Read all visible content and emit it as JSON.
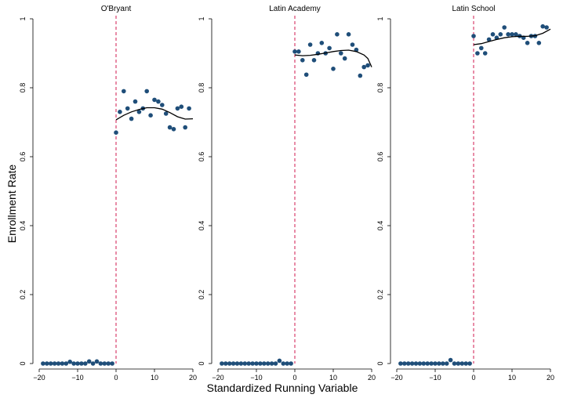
{
  "figure": {
    "ylabel": "Enrollment Rate",
    "xlabel": "Standardized Running Variable"
  },
  "colors": {
    "points": "#1f4e79",
    "cutoff": "#d11a4f",
    "fit": "#000000",
    "axis": "#000000"
  },
  "chart_data": [
    {
      "type": "scatter",
      "title": "O'Bryant",
      "xlim": [
        -20,
        20
      ],
      "ylim": [
        0,
        1
      ],
      "xticks": [
        -20,
        -10,
        0,
        10,
        20
      ],
      "xtick_labels": [
        "−20",
        "−10",
        "0",
        "10",
        "20"
      ],
      "yticks": [
        0,
        0.2,
        0.4,
        0.6,
        0.8,
        1
      ],
      "ytick_labels": [
        "0",
        "0.2",
        "0.4",
        "0.6",
        "0.8",
        "1"
      ],
      "cutoff": 0,
      "points": [
        [
          -19,
          0
        ],
        [
          -18,
          0
        ],
        [
          -17,
          0
        ],
        [
          -16,
          0
        ],
        [
          -15,
          0
        ],
        [
          -14,
          0
        ],
        [
          -13,
          0
        ],
        [
          -12,
          0.005
        ],
        [
          -11,
          0
        ],
        [
          -10,
          0
        ],
        [
          -9,
          0
        ],
        [
          -8,
          0
        ],
        [
          -7,
          0.006
        ],
        [
          -6,
          0
        ],
        [
          -5,
          0.006
        ],
        [
          -4,
          0
        ],
        [
          -3,
          0
        ],
        [
          -2,
          0
        ],
        [
          -1,
          0
        ],
        [
          0,
          0.67
        ],
        [
          1,
          0.73
        ],
        [
          2,
          0.79
        ],
        [
          3,
          0.74
        ],
        [
          4,
          0.71
        ],
        [
          5,
          0.76
        ],
        [
          6,
          0.73
        ],
        [
          7,
          0.74
        ],
        [
          8,
          0.79
        ],
        [
          9,
          0.72
        ],
        [
          10,
          0.765
        ],
        [
          11,
          0.76
        ],
        [
          12,
          0.75
        ],
        [
          13,
          0.725
        ],
        [
          14,
          0.685
        ],
        [
          15,
          0.68
        ],
        [
          16,
          0.74
        ],
        [
          17,
          0.745
        ],
        [
          18,
          0.685
        ],
        [
          19,
          0.74
        ]
      ],
      "fit": [
        [
          0,
          0.707
        ],
        [
          2,
          0.72
        ],
        [
          4,
          0.73
        ],
        [
          6,
          0.737
        ],
        [
          8,
          0.742
        ],
        [
          10,
          0.742
        ],
        [
          12,
          0.738
        ],
        [
          14,
          0.728
        ],
        [
          16,
          0.716
        ],
        [
          18,
          0.709
        ],
        [
          20,
          0.71
        ]
      ]
    },
    {
      "type": "scatter",
      "title": "Latin Academy",
      "xlim": [
        -20,
        20
      ],
      "ylim": [
        0,
        1
      ],
      "xticks": [
        -20,
        -10,
        0,
        10,
        20
      ],
      "xtick_labels": [
        "−20",
        "−10",
        "0",
        "10",
        "20"
      ],
      "yticks": [
        0,
        0.2,
        0.4,
        0.6,
        0.8,
        1
      ],
      "ytick_labels": [
        "0",
        "0.2",
        "0.4",
        "0.6",
        "0.8",
        "1"
      ],
      "cutoff": 0,
      "points": [
        [
          -19,
          0
        ],
        [
          -18,
          0
        ],
        [
          -17,
          0
        ],
        [
          -16,
          0
        ],
        [
          -15,
          0
        ],
        [
          -14,
          0
        ],
        [
          -13,
          0
        ],
        [
          -12,
          0
        ],
        [
          -11,
          0
        ],
        [
          -10,
          0
        ],
        [
          -9,
          0
        ],
        [
          -8,
          0
        ],
        [
          -7,
          0
        ],
        [
          -6,
          0
        ],
        [
          -5,
          0
        ],
        [
          -4,
          0.008
        ],
        [
          -3,
          0
        ],
        [
          -2,
          0
        ],
        [
          -1,
          0
        ],
        [
          0,
          0.905
        ],
        [
          1,
          0.905
        ],
        [
          2,
          0.88
        ],
        [
          3,
          0.838
        ],
        [
          4,
          0.925
        ],
        [
          5,
          0.88
        ],
        [
          6,
          0.9
        ],
        [
          7,
          0.93
        ],
        [
          8,
          0.9
        ],
        [
          9,
          0.915
        ],
        [
          10,
          0.855
        ],
        [
          11,
          0.955
        ],
        [
          12,
          0.9
        ],
        [
          13,
          0.885
        ],
        [
          14,
          0.955
        ],
        [
          15,
          0.925
        ],
        [
          16,
          0.91
        ],
        [
          17,
          0.835
        ],
        [
          18,
          0.86
        ],
        [
          19,
          0.865
        ]
      ],
      "fit": [
        [
          0,
          0.895
        ],
        [
          2,
          0.893
        ],
        [
          4,
          0.894
        ],
        [
          6,
          0.897
        ],
        [
          8,
          0.901
        ],
        [
          10,
          0.905
        ],
        [
          12,
          0.908
        ],
        [
          14,
          0.909
        ],
        [
          16,
          0.905
        ],
        [
          18,
          0.895
        ],
        [
          19,
          0.885
        ],
        [
          20,
          0.86
        ]
      ]
    },
    {
      "type": "scatter",
      "title": "Latin School",
      "xlim": [
        -20,
        20
      ],
      "ylim": [
        0,
        1
      ],
      "xticks": [
        -20,
        -10,
        0,
        10,
        20
      ],
      "xtick_labels": [
        "−20",
        "−10",
        "0",
        "10",
        "20"
      ],
      "yticks": [
        0,
        0.2,
        0.4,
        0.6,
        0.8,
        1
      ],
      "ytick_labels": [
        "0",
        "0.2",
        "0.4",
        "0.6",
        "0.8",
        "1"
      ],
      "cutoff": 0,
      "points": [
        [
          -19,
          0
        ],
        [
          -18,
          0
        ],
        [
          -17,
          0
        ],
        [
          -16,
          0
        ],
        [
          -15,
          0
        ],
        [
          -14,
          0
        ],
        [
          -13,
          0
        ],
        [
          -12,
          0
        ],
        [
          -11,
          0
        ],
        [
          -10,
          0
        ],
        [
          -9,
          0
        ],
        [
          -8,
          0
        ],
        [
          -7,
          0
        ],
        [
          -6,
          0.01
        ],
        [
          -5,
          0
        ],
        [
          -4,
          0
        ],
        [
          -3,
          0
        ],
        [
          -2,
          0
        ],
        [
          -1,
          0
        ],
        [
          0,
          0.95
        ],
        [
          1,
          0.9
        ],
        [
          2,
          0.915
        ],
        [
          3,
          0.9
        ],
        [
          4,
          0.94
        ],
        [
          5,
          0.955
        ],
        [
          6,
          0.945
        ],
        [
          7,
          0.955
        ],
        [
          8,
          0.975
        ],
        [
          9,
          0.955
        ],
        [
          10,
          0.955
        ],
        [
          11,
          0.955
        ],
        [
          12,
          0.95
        ],
        [
          13,
          0.945
        ],
        [
          14,
          0.93
        ],
        [
          15,
          0.95
        ],
        [
          16,
          0.95
        ],
        [
          17,
          0.93
        ],
        [
          18,
          0.978
        ],
        [
          19,
          0.975
        ]
      ],
      "fit": [
        [
          0,
          0.925
        ],
        [
          2,
          0.928
        ],
        [
          4,
          0.934
        ],
        [
          6,
          0.94
        ],
        [
          8,
          0.945
        ],
        [
          10,
          0.948
        ],
        [
          12,
          0.949
        ],
        [
          14,
          0.949
        ],
        [
          16,
          0.951
        ],
        [
          18,
          0.958
        ],
        [
          20,
          0.97
        ]
      ]
    }
  ]
}
